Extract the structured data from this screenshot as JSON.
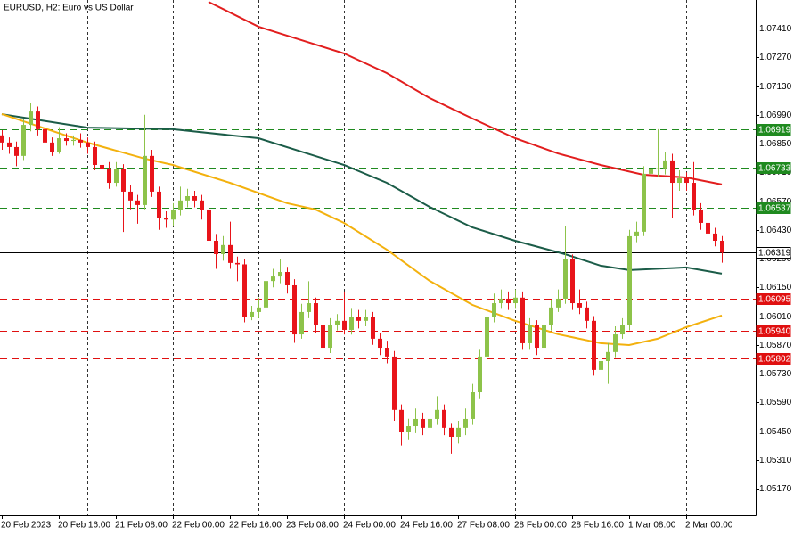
{
  "chart_data": {
    "type": "candlestick",
    "title": "EURUSD, H2:  Euro vs US Dollar",
    "categories": [
      "20 Feb 2023",
      null,
      null,
      null,
      null,
      null,
      null,
      null,
      "20 Feb 16:00",
      null,
      null,
      null,
      null,
      null,
      null,
      null,
      "21 Feb 08:00",
      null,
      null,
      null,
      null,
      null,
      null,
      null,
      "22 Feb 00:00",
      null,
      null,
      null,
      null,
      null,
      null,
      null,
      "22 Feb 16:00",
      null,
      null,
      null,
      null,
      null,
      null,
      null,
      "23 Feb 08:00",
      null,
      null,
      null,
      null,
      null,
      null,
      null,
      "24 Feb 00:00",
      null,
      null,
      null,
      null,
      null,
      null,
      null,
      "24 Feb 16:00",
      null,
      null,
      null,
      null,
      null,
      null,
      null,
      "27 Feb 08:00",
      null,
      null,
      null,
      null,
      null,
      null,
      null,
      "28 Feb 00:00",
      null,
      null,
      null,
      null,
      null,
      null,
      null,
      "28 Feb 16:00",
      null,
      null,
      null,
      null,
      null,
      null,
      null,
      "1 Mar 08:00",
      null,
      null,
      null,
      null,
      null,
      null,
      null,
      "2 Mar 00:00",
      null,
      null,
      null,
      null,
      null
    ],
    "open": [
      1.0689,
      1.06855,
      1.06833,
      1.0679,
      1.06941,
      1.07006,
      1.0692,
      1.06855,
      1.06811,
      1.06876,
      1.06863,
      1.06868,
      1.06855,
      1.06833,
      1.06746,
      1.06725,
      1.06659,
      1.06725,
      1.06616,
      1.06573,
      1.06551,
      1.0679,
      1.06616,
      1.06486,
      1.0648,
      1.06529,
      1.06573,
      1.06594,
      1.06573,
      1.06529,
      1.06377,
      1.06312,
      1.06356,
      1.06269,
      1.06262,
      1.06008,
      1.0603,
      1.06052,
      1.06181,
      1.06203,
      1.06225,
      1.0616,
      1.05921,
      1.0603,
      1.06073,
      1.05965,
      1.05856,
      1.05965,
      1.05987,
      1.05943,
      1.06008,
      1.05987,
      1.06008,
      1.059,
      1.05856,
      1.05813,
      1.05553,
      1.05444,
      1.05474,
      1.05509,
      1.05466,
      1.05509,
      1.05553,
      1.05466,
      1.05422,
      1.05466,
      1.05509,
      1.05639,
      1.05813,
      1.06008,
      1.06073,
      1.06095,
      1.06073,
      1.061,
      1.05878,
      1.05965,
      1.05856,
      1.05965,
      1.06052,
      1.06095,
      1.0629,
      1.06073,
      1.06052,
      1.05987,
      1.05748,
      1.05791,
      1.05835,
      1.05921,
      1.05965,
      1.06399,
      1.06421,
      1.06703,
      1.06725,
      1.0673,
      1.06768,
      1.06659,
      1.06681,
      1.06659,
      1.06529,
      1.06464,
      1.06412,
      1.06377
    ],
    "high": [
      1.06915,
      1.0688,
      1.0686,
      1.0697,
      1.0705,
      1.0703,
      1.0694,
      1.0688,
      1.0693,
      1.069,
      1.0689,
      1.069,
      1.0688,
      1.0686,
      1.0678,
      1.0676,
      1.0676,
      1.0675,
      1.0665,
      1.066,
      1.0699,
      1.0682,
      1.0664,
      1.0652,
      1.0656,
      1.0664,
      1.0663,
      1.0662,
      1.066,
      1.0656,
      1.0641,
      1.064,
      1.0647,
      1.063,
      1.0629,
      1.0606,
      1.061,
      1.0623,
      1.0624,
      1.0629,
      1.0625,
      1.0619,
      1.0607,
      1.0618,
      1.061,
      1.0599,
      1.06,
      1.0602,
      1.0613,
      1.0605,
      1.0604,
      1.0604,
      1.0603,
      1.0593,
      1.0589,
      1.0584,
      1.0558,
      1.0551,
      1.0556,
      1.0554,
      1.0556,
      1.0562,
      1.0558,
      1.0549,
      1.055,
      1.0556,
      1.0568,
      1.0585,
      1.0606,
      1.0612,
      1.0614,
      1.0613,
      1.0614,
      1.0613,
      1.06,
      1.0599,
      1.06,
      1.0609,
      1.0614,
      1.0645,
      1.0631,
      1.0614,
      1.0608,
      1.0601,
      1.0583,
      1.0588,
      1.0596,
      1.06,
      1.0643,
      1.0647,
      1.0674,
      1.0677,
      1.0692,
      1.0681,
      1.068,
      1.0672,
      1.0671,
      1.0676,
      1.0656,
      1.0649,
      1.0644,
      1.064
    ],
    "low": [
      1.0682,
      1.068,
      1.0674,
      1.0677,
      1.0691,
      1.0689,
      1.0678,
      1.0679,
      1.068,
      1.0684,
      1.0684,
      1.0683,
      1.068,
      1.0672,
      1.0669,
      1.0663,
      1.0664,
      1.0642,
      1.0653,
      1.0646,
      1.0653,
      1.0659,
      1.0643,
      1.0644,
      1.0645,
      1.065,
      1.0654,
      1.0654,
      1.0648,
      1.0634,
      1.0624,
      1.0628,
      1.0624,
      1.0618,
      1.0598,
      1.0599,
      1.06,
      1.0603,
      1.0615,
      1.0617,
      1.0612,
      1.0588,
      1.059,
      1.06,
      1.0593,
      1.0578,
      1.0583,
      1.0594,
      1.0592,
      1.0592,
      1.0595,
      1.0596,
      1.0587,
      1.0582,
      1.0578,
      1.055,
      1.0538,
      1.0541,
      1.0544,
      1.0543,
      1.0544,
      1.0548,
      1.0543,
      1.0534,
      1.0539,
      1.0543,
      1.0548,
      1.0561,
      1.0579,
      1.0598,
      1.0605,
      1.0604,
      1.0605,
      1.0585,
      1.0585,
      1.0582,
      1.0583,
      1.0594,
      1.0603,
      1.0607,
      1.0604,
      1.0602,
      1.0595,
      1.0572,
      1.0572,
      1.0568,
      1.0581,
      1.059,
      1.0594,
      1.0637,
      1.064,
      1.0647,
      1.0669,
      1.067,
      1.0649,
      1.0662,
      1.0662,
      1.065,
      1.0643,
      1.0638,
      1.0635,
      1.0627
    ],
    "close": [
      1.06855,
      1.06833,
      1.0679,
      1.06941,
      1.07006,
      1.0692,
      1.06855,
      1.06811,
      1.06876,
      1.06863,
      1.06868,
      1.06855,
      1.06833,
      1.06746,
      1.06725,
      1.06659,
      1.06725,
      1.06616,
      1.06573,
      1.06551,
      1.0679,
      1.06616,
      1.06486,
      1.0648,
      1.06529,
      1.06573,
      1.06594,
      1.06573,
      1.06529,
      1.06377,
      1.06312,
      1.06356,
      1.06269,
      1.06262,
      1.06008,
      1.0603,
      1.06052,
      1.06181,
      1.06203,
      1.06225,
      1.0616,
      1.05921,
      1.0603,
      1.06073,
      1.05965,
      1.05856,
      1.05965,
      1.05987,
      1.05943,
      1.06008,
      1.05987,
      1.06008,
      1.059,
      1.05856,
      1.05813,
      1.05553,
      1.05444,
      1.05474,
      1.05509,
      1.05466,
      1.05509,
      1.05553,
      1.05466,
      1.05422,
      1.05466,
      1.05509,
      1.05639,
      1.05813,
      1.06008,
      1.06073,
      1.06095,
      1.06073,
      1.061,
      1.05878,
      1.05965,
      1.05856,
      1.05965,
      1.06052,
      1.06095,
      1.0629,
      1.06073,
      1.06052,
      1.05987,
      1.05748,
      1.05791,
      1.05835,
      1.05921,
      1.05965,
      1.06399,
      1.06421,
      1.06703,
      1.06725,
      1.0673,
      1.06768,
      1.06659,
      1.06681,
      1.06659,
      1.06529,
      1.06464,
      1.06412,
      1.06377,
      1.06319
    ],
    "up_color": "#8dc34a",
    "down_color": "#e8141a",
    "series": [
      {
        "color": "#e21e1e",
        "x": [
          29,
          36,
          42,
          48,
          54,
          60,
          66,
          72,
          78,
          84,
          90,
          96,
          101
        ],
        "values": [
          1.0754,
          1.07419,
          1.07354,
          1.07289,
          1.07193,
          1.07072,
          1.06972,
          1.06876,
          1.06802,
          1.06746,
          1.06698,
          1.06685,
          1.06651
        ]
      },
      {
        "color": "#1b5c48",
        "x": [
          0,
          12,
          24,
          36,
          48,
          54,
          60,
          66,
          72,
          79,
          84,
          88,
          96,
          101
        ],
        "values": [
          1.06993,
          1.06928,
          1.0692,
          1.06876,
          1.06746,
          1.06659,
          1.06542,
          1.06442,
          1.06377,
          1.06312,
          1.06256,
          1.06234,
          1.06247,
          1.06217
        ]
      },
      {
        "color": "#f3b10e",
        "x": [
          0,
          12,
          20,
          24,
          32,
          40,
          44,
          48,
          54,
          60,
          66,
          72,
          78,
          84,
          88,
          92,
          96,
          101
        ],
        "values": [
          1.06994,
          1.06855,
          1.06777,
          1.06746,
          1.06659,
          1.0656,
          1.06529,
          1.06464,
          1.06334,
          1.06182,
          1.06065,
          1.05987,
          1.05922,
          1.05878,
          1.05869,
          1.059,
          1.05956,
          1.06013
        ]
      }
    ],
    "levels": [
      {
        "value": 1.06919,
        "label": "1.06919",
        "color": "#1f8a1f",
        "style": "dashed"
      },
      {
        "value": 1.06733,
        "label": "1.06733",
        "color": "#1f8a1f",
        "style": "dashed"
      },
      {
        "value": 1.06537,
        "label": "1.06537",
        "color": "#1f8a1f",
        "style": "dashed"
      },
      {
        "value": 1.06319,
        "label": "1.06319",
        "color": "#000000",
        "style": "solid"
      },
      {
        "value": 1.06095,
        "label": "1.06095",
        "color": "#e01010",
        "style": "dashed"
      },
      {
        "value": 1.0594,
        "label": "1.05940",
        "color": "#e01010",
        "style": "dashed"
      },
      {
        "value": 1.05802,
        "label": "1.05802",
        "color": "#e01010",
        "style": "dashed"
      }
    ],
    "ylim": [
      1.0504,
      1.07549
    ],
    "yticks": [
      {
        "value": 1.0741,
        "label": "1.07410"
      },
      {
        "value": 1.0727,
        "label": "1.07270"
      },
      {
        "value": 1.0713,
        "label": "1.07130"
      },
      {
        "value": 1.0699,
        "label": "1.06990"
      },
      {
        "value": 1.0685,
        "label": "1.06850"
      },
      {
        "value": 1.0671,
        "label": "1.06710"
      },
      {
        "value": 1.0657,
        "label": "1.06570"
      },
      {
        "value": 1.0643,
        "label": "1.06430"
      },
      {
        "value": 1.0629,
        "label": "1.06290"
      },
      {
        "value": 1.0615,
        "label": "1.06150"
      },
      {
        "value": 1.0601,
        "label": "1.06010"
      },
      {
        "value": 1.0587,
        "label": "1.05870"
      },
      {
        "value": 1.0573,
        "label": "1.05730"
      },
      {
        "value": 1.0559,
        "label": "1.05590"
      },
      {
        "value": 1.0545,
        "label": "1.05450"
      },
      {
        "value": 1.0531,
        "label": "1.05310"
      },
      {
        "value": 1.0517,
        "label": "1.05170"
      }
    ],
    "grid": true
  }
}
